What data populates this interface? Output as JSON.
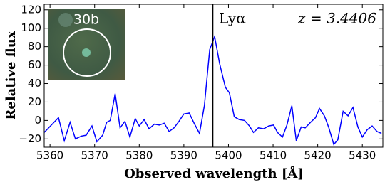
{
  "chart_data": {
    "type": "line",
    "xlabel": "Observed wavelength [Å]",
    "ylabel": "Relative flux",
    "annotations": {
      "line_label": "Lyα",
      "redshift": "z = 3.4406",
      "inset_label": "30b"
    },
    "vline": 5396.5,
    "x": [
      5358.7,
      5360.3,
      5361.9,
      5363.2,
      5364.5,
      5365.7,
      5367.0,
      5368.1,
      5369.4,
      5370.5,
      5371.8,
      5372.7,
      5373.5,
      5374.6,
      5375.7,
      5376.8,
      5377.9,
      5379.1,
      5380.0,
      5381.1,
      5382.2,
      5383.4,
      5384.5,
      5385.6,
      5386.7,
      5387.8,
      5388.9,
      5390.0,
      5391.2,
      5392.3,
      5393.5,
      5394.6,
      5395.8,
      5396.9,
      5398.0,
      5399.3,
      5400.2,
      5401.3,
      5402.4,
      5403.6,
      5404.7,
      5405.6,
      5406.7,
      5407.9,
      5409.0,
      5410.1,
      5411.0,
      5412.1,
      5413.1,
      5414.2,
      5415.2,
      5416.3,
      5417.2,
      5418.4,
      5419.5,
      5420.4,
      5421.5,
      5422.5,
      5423.6,
      5424.5,
      5425.7,
      5426.8,
      5427.9,
      5429.0,
      5430.0,
      5431.1,
      5432.2,
      5433.3,
      5434.3
    ],
    "series": [
      {
        "color": "#0000ff",
        "values": [
          -13,
          -5,
          3,
          -22,
          -2,
          -20,
          -17,
          -16,
          -6,
          -23,
          -16,
          -2,
          0,
          29,
          -8,
          -1,
          -18,
          2,
          -6,
          1,
          -9,
          -4,
          -5,
          -3,
          -12,
          -8,
          -1,
          7,
          8,
          -3,
          -14,
          16,
          77,
          91,
          62,
          36,
          30,
          4,
          1,
          0,
          -6,
          -13,
          -8,
          -9,
          -6,
          -5,
          -13,
          -18,
          -5,
          16,
          -22,
          -7,
          -8,
          -2,
          3,
          13,
          5,
          -8,
          -26,
          -21,
          10,
          5,
          14,
          -7,
          -18,
          -10,
          -6,
          -12,
          -14
        ]
      }
    ],
    "xlim": [
      5358.7,
      5434.6
    ],
    "ylim": [
      -29,
      126
    ],
    "xticks": [
      5360,
      5370,
      5380,
      5390,
      5400,
      5410,
      5420,
      5430
    ],
    "yticks": [
      {
        "value": -20,
        "label": "−20"
      },
      0,
      20,
      40,
      60,
      80,
      100,
      120
    ]
  }
}
